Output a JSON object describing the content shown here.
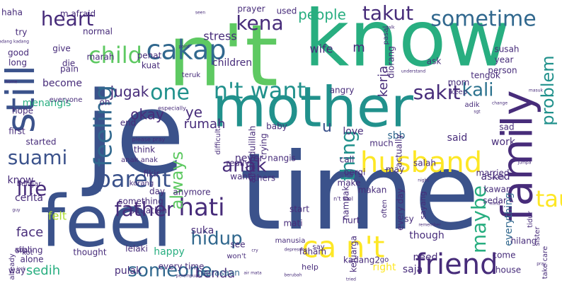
{
  "cloud": {
    "palette": {
      "dark_purple": "#472c7a",
      "indigo": "#3b528b",
      "slate_blue": "#31688e",
      "steel": "#2c728e",
      "teal": "#21918c",
      "green_teal": "#28ae80",
      "green": "#5ec962",
      "light_green": "#addc30",
      "yellow": "#fde725"
    },
    "words": [
      {
        "text": "time",
        "color": "#3b528b"
      },
      {
        "text": "je",
        "color": "#3b528b"
      },
      {
        "text": "know",
        "color": "#28ae80"
      },
      {
        "text": "n't",
        "color": "#5ec962"
      },
      {
        "text": "feel",
        "color": "#3b528b"
      },
      {
        "text": "mother",
        "color": "#21918c"
      },
      {
        "text": "family",
        "color": "#472c7a"
      },
      {
        "text": "still",
        "color": "#3b528b"
      },
      {
        "text": "husband",
        "color": "#fde725"
      },
      {
        "text": "ca n't",
        "color": "#fde725"
      },
      {
        "text": "friend",
        "color": "#472c7a"
      },
      {
        "text": "cakap",
        "color": "#31688e"
      },
      {
        "text": "kena",
        "color": "#472c7a"
      },
      {
        "text": "sometime",
        "color": "#31688e"
      },
      {
        "text": "takut",
        "color": "#472c7a"
      },
      {
        "text": "heart",
        "color": "#472c7a"
      },
      {
        "text": "child",
        "color": "#5ec962"
      },
      {
        "text": "feeling",
        "color": "#31688e"
      },
      {
        "text": "suami",
        "color": "#3b528b"
      },
      {
        "text": "parent",
        "color": "#3b528b"
      },
      {
        "text": "hati",
        "color": "#472c7a"
      },
      {
        "text": "anak",
        "color": "#472c7a"
      },
      {
        "text": "n't want",
        "color": "#21918c"
      },
      {
        "text": "one",
        "color": "#21918c"
      },
      {
        "text": "sakit",
        "color": "#472c7a"
      },
      {
        "text": "kali",
        "color": "#2c728e"
      },
      {
        "text": "problem",
        "color": "#21918c"
      },
      {
        "text": "maybe",
        "color": "#28ae80"
      },
      {
        "text": "tau",
        "color": "#fde725"
      },
      {
        "text": "thing",
        "color": "#21918c"
      },
      {
        "text": "life",
        "color": "#472c7a"
      },
      {
        "text": "father",
        "color": "#472c7a"
      },
      {
        "text": "hidup",
        "color": "#31688e"
      },
      {
        "text": "someone",
        "color": "#31688e"
      },
      {
        "text": "always",
        "color": "#5ec962"
      },
      {
        "text": "u",
        "color": "#3b528b"
      },
      {
        "text": "kerja",
        "color": "#472c7a"
      },
      {
        "text": "jugak",
        "color": "#472c7a"
      },
      {
        "text": "okay",
        "color": "#472c7a"
      },
      {
        "text": "ye",
        "color": "#472c7a"
      },
      {
        "text": "rumah",
        "color": "#472c7a"
      },
      {
        "text": "people",
        "color": "#28ae80"
      },
      {
        "text": "m",
        "color": "#472c7a"
      },
      {
        "text": "sedih",
        "color": "#28ae80"
      },
      {
        "text": "benda",
        "color": "#472c7a"
      },
      {
        "text": "stress",
        "color": "#472c7a"
      },
      {
        "text": "wife",
        "color": "#472c7a"
      },
      {
        "text": "children",
        "color": "#472c7a"
      },
      {
        "text": "become",
        "color": "#472c7a"
      },
      {
        "text": "menangis",
        "color": "#28ae80"
      },
      {
        "text": "face",
        "color": "#472c7a"
      },
      {
        "text": "know",
        "color": "#472c7a"
      },
      {
        "text": "cerita",
        "color": "#472c7a"
      },
      {
        "text": "felt",
        "color": "#addc30"
      },
      {
        "text": "love",
        "color": "#472c7a"
      },
      {
        "text": "sbb",
        "color": "#31688e"
      },
      {
        "text": "said",
        "color": "#472c7a"
      },
      {
        "text": "work",
        "color": "#472c7a"
      },
      {
        "text": "everything",
        "color": "#31688e"
      },
      {
        "text": "though",
        "color": "#472c7a"
      },
      {
        "text": "suka",
        "color": "#472c7a"
      },
      {
        "text": "perasaan",
        "color": "#31688e"
      },
      {
        "text": "pulak",
        "color": "#472c7a"
      },
      {
        "text": "saja",
        "color": "#472c7a"
      },
      {
        "text": "need",
        "color": "#472c7a"
      },
      {
        "text": "happy",
        "color": "#28ae80"
      },
      {
        "text": "nampak",
        "color": "#472c7a"
      },
      {
        "text": "want",
        "color": "#472c7a"
      },
      {
        "text": "others",
        "color": "#472c7a"
      },
      {
        "text": "sibling",
        "color": "#472c7a"
      },
      {
        "text": "alone",
        "color": "#472c7a"
      },
      {
        "text": "thought",
        "color": "#472c7a"
      },
      {
        "text": "lelaki",
        "color": "#472c7a"
      },
      {
        "text": "help",
        "color": "#472c7a"
      },
      {
        "text": "right",
        "color": "#fde725"
      },
      {
        "text": "come",
        "color": "#472c7a"
      },
      {
        "text": "house",
        "color": "#472c7a"
      },
      {
        "text": "take care",
        "color": "#472c7a"
      },
      {
        "text": "faham",
        "color": "#472c7a"
      },
      {
        "text": "keluarga",
        "color": "#472c7a"
      },
      {
        "text": "every day",
        "color": "#472c7a"
      },
      {
        "text": "sy",
        "color": "#472c7a"
      },
      {
        "text": "sayang",
        "color": "#472c7a"
      },
      {
        "text": "tidur",
        "color": "#472c7a"
      },
      {
        "text": "sedar",
        "color": "#472c7a"
      },
      {
        "text": "mati",
        "color": "#472c7a"
      },
      {
        "text": "start",
        "color": "#472c7a"
      },
      {
        "text": "really",
        "color": "#472c7a"
      },
      {
        "text": "never",
        "color": "#472c7a"
      },
      {
        "text": "call",
        "color": "#472c7a"
      },
      {
        "text": "pergi",
        "color": "#472c7a"
      },
      {
        "text": "make",
        "color": "#472c7a"
      },
      {
        "text": "much",
        "color": "#472c7a"
      },
      {
        "text": "may",
        "color": "#472c7a"
      },
      {
        "text": "sad",
        "color": "#472c7a"
      },
      {
        "text": "asked",
        "color": "#472c7a"
      },
      {
        "text": "kawan",
        "color": "#472c7a"
      },
      {
        "text": "married",
        "color": "#472c7a"
      },
      {
        "text": "think",
        "color": "#472c7a"
      },
      {
        "text": "end",
        "color": "#472c7a"
      },
      {
        "text": "baby",
        "color": "#472c7a"
      },
      {
        "text": "nangis",
        "color": "#472c7a"
      },
      {
        "text": "crying",
        "color": "#472c7a"
      },
      {
        "text": "alhamdulillah",
        "color": "#472c7a"
      },
      {
        "text": "difficult",
        "color": "#472c7a"
      },
      {
        "text": "angry",
        "color": "#472c7a"
      },
      {
        "text": "mom",
        "color": "#472c7a"
      },
      {
        "text": "keep",
        "color": "#472c7a"
      },
      {
        "text": "adik",
        "color": "#472c7a"
      },
      {
        "text": "tengok",
        "color": "#472c7a"
      },
      {
        "text": "ask",
        "color": "#472c7a"
      },
      {
        "text": "diorang",
        "color": "#472c7a"
      },
      {
        "text": "year",
        "color": "#472c7a"
      },
      {
        "text": "person",
        "color": "#472c7a"
      },
      {
        "text": "susah",
        "color": "#472c7a"
      },
      {
        "text": "penat",
        "color": "#472c7a"
      },
      {
        "text": "marah",
        "color": "#472c7a"
      },
      {
        "text": "normal",
        "color": "#472c7a"
      },
      {
        "text": "give",
        "color": "#472c7a"
      },
      {
        "text": "die",
        "color": "#472c7a"
      },
      {
        "text": "pain",
        "color": "#472c7a"
      },
      {
        "text": "good",
        "color": "#472c7a"
      },
      {
        "text": "long",
        "color": "#472c7a"
      },
      {
        "text": "try",
        "color": "#472c7a"
      },
      {
        "text": "haha",
        "color": "#472c7a"
      },
      {
        "text": "m afraid",
        "color": "#472c7a"
      },
      {
        "text": "prayer",
        "color": "#472c7a"
      },
      {
        "text": "used",
        "color": "#472c7a"
      },
      {
        "text": "kuat",
        "color": "#472c7a"
      },
      {
        "text": "fikir",
        "color": "#472c7a"
      },
      {
        "text": "korang",
        "color": "#472c7a"
      },
      {
        "text": "makan",
        "color": "#472c7a"
      },
      {
        "text": "salah",
        "color": "#472c7a"
      },
      {
        "text": "first",
        "color": "#472c7a"
      },
      {
        "text": "started",
        "color": "#472c7a"
      },
      {
        "text": "hope",
        "color": "#472c7a"
      },
      {
        "text": "day",
        "color": "#472c7a"
      },
      {
        "text": "something",
        "color": "#472c7a"
      },
      {
        "text": "anymore",
        "color": "#472c7a"
      },
      {
        "text": "situation",
        "color": "#472c7a"
      },
      {
        "text": "every time",
        "color": "#472c7a"
      },
      {
        "text": "won't",
        "color": "#472c7a"
      },
      {
        "text": "way",
        "color": "#472c7a"
      },
      {
        "text": "kot",
        "color": "#472c7a"
      },
      {
        "text": "already",
        "color": "#472c7a"
      },
      {
        "text": "actually",
        "color": "#472c7a"
      },
      {
        "text": "kadang2",
        "color": "#472c7a"
      },
      {
        "text": "sister",
        "color": "#472c7a"
      },
      {
        "text": "hilang",
        "color": "#472c7a"
      },
      {
        "text": "say",
        "color": "#472c7a"
      },
      {
        "text": "hurt",
        "color": "#472c7a"
      },
      {
        "text": "manusia",
        "color": "#472c7a"
      },
      {
        "text": "see",
        "color": "#472c7a"
      },
      {
        "text": "oh",
        "color": "#472c7a"
      },
      {
        "text": "abah",
        "color": "#472c7a"
      },
      {
        "text": "belajar",
        "color": "#472c7a"
      },
      {
        "text": "teruk",
        "color": "#472c7a"
      },
      {
        "text": "pasal",
        "color": "#472c7a"
      },
      {
        "text": "everyone",
        "color": "#472c7a"
      },
      {
        "text": "often",
        "color": "#472c7a"
      },
      {
        "text": "go",
        "color": "#472c7a"
      },
      {
        "text": "n't feel",
        "color": "#472c7a"
      },
      {
        "text": "anak anak",
        "color": "#472c7a"
      },
      {
        "text": "especially",
        "color": "#472c7a"
      },
      {
        "text": "please pray",
        "color": "#472c7a"
      },
      {
        "text": "talk",
        "color": "#472c7a"
      },
      {
        "text": "seen",
        "color": "#472c7a"
      },
      {
        "text": "point",
        "color": "#472c7a"
      },
      {
        "text": "kadang kadang",
        "color": "#472c7a"
      },
      {
        "text": "home",
        "color": "#472c7a"
      },
      {
        "text": "understand",
        "color": "#472c7a"
      },
      {
        "text": "change",
        "color": "#472c7a"
      },
      {
        "text": "night",
        "color": "#472c7a"
      },
      {
        "text": "remember",
        "color": "#472c7a"
      },
      {
        "text": "sgt",
        "color": "#472c7a"
      },
      {
        "text": "jumpa",
        "color": "#472c7a"
      },
      {
        "text": "month",
        "color": "#472c7a"
      },
      {
        "text": "masuk",
        "color": "#472c7a"
      },
      {
        "text": "mind",
        "color": "#472c7a"
      },
      {
        "text": "depression",
        "color": "#472c7a"
      },
      {
        "text": "air mata",
        "color": "#472c7a"
      },
      {
        "text": "berubah",
        "color": "#472c7a"
      },
      {
        "text": "tried",
        "color": "#472c7a"
      },
      {
        "text": "pray",
        "color": "#472c7a"
      },
      {
        "text": "perempuan",
        "color": "#472c7a"
      },
      {
        "text": "cry",
        "color": "#472c7a"
      },
      {
        "text": "look",
        "color": "#472c7a"
      },
      {
        "text": "guy",
        "color": "#472c7a"
      },
      {
        "text": "suddenly",
        "color": "#472c7a"
      },
      {
        "text": "going",
        "color": "#472c7a"
      }
    ]
  }
}
